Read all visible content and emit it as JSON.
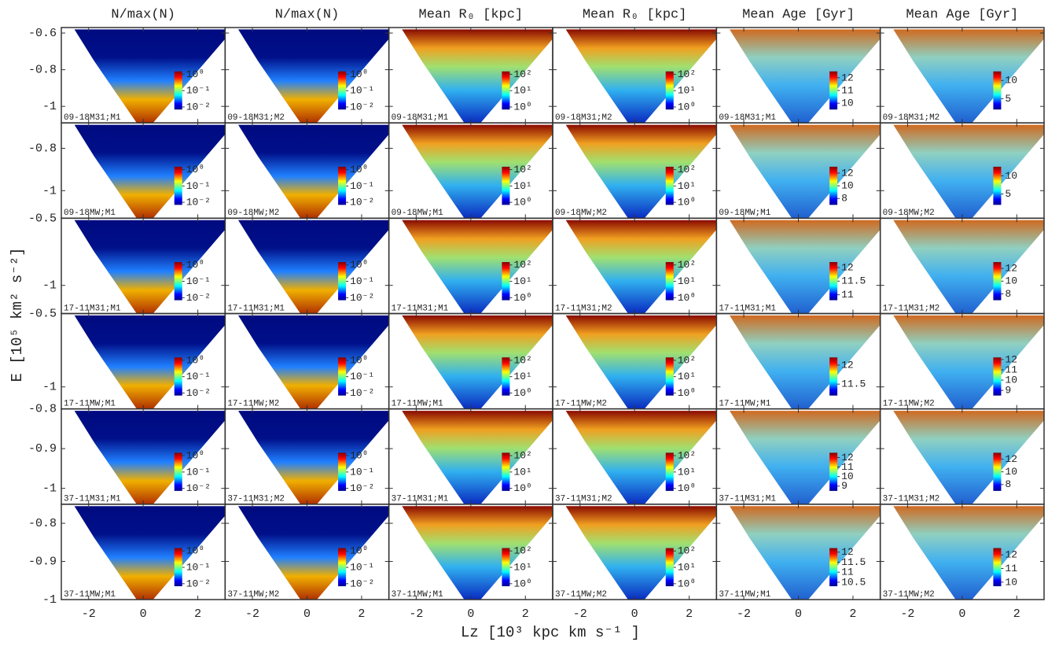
{
  "x_label": "Lz [10³ kpc km s⁻¹ ]",
  "y_label": "E [10⁵ km² s⁻²]",
  "chart_data": [
    {
      "type": "heatmap",
      "title": "N/max(N)",
      "label": "09-18M31;M1",
      "xlim": [
        -3,
        3
      ],
      "xticks": [
        -2,
        0,
        2
      ],
      "ylim": [
        -1.09,
        -0.57
      ],
      "yticks": [
        -1,
        -0.8,
        -0.6
      ],
      "clim": [
        0.007,
        1.5
      ],
      "clog": true,
      "cticks": [
        {
          "value": 1,
          "label": "10⁰"
        },
        {
          "value": 0.1,
          "label": "10⁻¹"
        },
        {
          "value": 0.01,
          "label": "10⁻²"
        }
      ]
    },
    {
      "type": "heatmap",
      "title": "N/max(N)",
      "label": "09-18M31;M2",
      "xlim": [
        -3,
        3
      ],
      "xticks": [
        -2,
        0,
        2
      ],
      "ylim": [
        -1.09,
        -0.57
      ],
      "yticks": [
        -1,
        -0.8,
        -0.6
      ],
      "clim": [
        0.007,
        1.5
      ],
      "clog": true,
      "cticks": [
        {
          "value": 1,
          "label": "10⁰"
        },
        {
          "value": 0.1,
          "label": "10⁻¹"
        },
        {
          "value": 0.01,
          "label": "10⁻²"
        }
      ]
    },
    {
      "type": "heatmap",
      "title": "Mean R₀ [kpc]",
      "label": "09-18M31;M1",
      "xlim": [
        -3,
        3
      ],
      "xticks": [
        -2,
        0,
        2
      ],
      "ylim": [
        -1.09,
        -0.57
      ],
      "yticks": [
        -1,
        -0.8,
        -0.6
      ],
      "clim": [
        0.7,
        150
      ],
      "clog": true,
      "cticks": [
        {
          "value": 100,
          "label": "10²"
        },
        {
          "value": 10,
          "label": "10¹"
        },
        {
          "value": 1,
          "label": "10⁰"
        }
      ]
    },
    {
      "type": "heatmap",
      "title": "Mean R₀ [kpc]",
      "label": "09-18M31;M2",
      "xlim": [
        -3,
        3
      ],
      "xticks": [
        -2,
        0,
        2
      ],
      "ylim": [
        -1.09,
        -0.57
      ],
      "yticks": [
        -1,
        -0.8,
        -0.6
      ],
      "clim": [
        0.7,
        150
      ],
      "clog": true,
      "cticks": [
        {
          "value": 100,
          "label": "10²"
        },
        {
          "value": 10,
          "label": "10¹"
        },
        {
          "value": 1,
          "label": "10⁰"
        }
      ]
    },
    {
      "type": "heatmap",
      "title": "Mean Age [Gyr]",
      "label": "09-18M31;M1",
      "xlim": [
        -3,
        3
      ],
      "xticks": [
        -2,
        0,
        2
      ],
      "ylim": [
        -1.09,
        -0.57
      ],
      "yticks": [
        -1,
        -0.8,
        -0.6
      ],
      "clim": [
        9.5,
        12.5
      ],
      "clog": false,
      "cticks": [
        12,
        11,
        10
      ]
    },
    {
      "type": "heatmap",
      "title": "Mean Age [Gyr]",
      "label": "09-18M31;M2",
      "xlim": [
        -3,
        3
      ],
      "xticks": [
        -2,
        0,
        2
      ],
      "ylim": [
        -1.09,
        -0.57
      ],
      "yticks": [
        -1,
        -0.8,
        -0.6
      ],
      "clim": [
        2,
        12.5
      ],
      "clog": false,
      "cticks": [
        10,
        5
      ]
    },
    {
      "type": "heatmap",
      "label": "09-18MW;M1",
      "xlim": [
        -3,
        3
      ],
      "xticks": [
        -2,
        0,
        2
      ],
      "ylim": [
        -1.13,
        -0.68
      ],
      "yticks": [
        -1,
        -0.8
      ],
      "clim": [
        0.007,
        1.5
      ],
      "clog": true,
      "cticks": [
        {
          "value": 1,
          "label": "10⁰"
        },
        {
          "value": 0.1,
          "label": "10⁻¹"
        },
        {
          "value": 0.01,
          "label": "10⁻²"
        }
      ]
    },
    {
      "type": "heatmap",
      "label": "09-18MW;M2",
      "xlim": [
        -3,
        3
      ],
      "xticks": [
        -2,
        0,
        2
      ],
      "ylim": [
        -1.13,
        -0.68
      ],
      "yticks": [
        -1,
        -0.8
      ],
      "clim": [
        0.007,
        1.5
      ],
      "clog": true,
      "cticks": [
        {
          "value": 1,
          "label": "10⁰"
        },
        {
          "value": 0.1,
          "label": "10⁻¹"
        },
        {
          "value": 0.01,
          "label": "10⁻²"
        }
      ]
    },
    {
      "type": "heatmap",
      "label": "09-18MW;M1",
      "xlim": [
        -3,
        3
      ],
      "xticks": [
        -2,
        0,
        2
      ],
      "ylim": [
        -1.13,
        -0.68
      ],
      "yticks": [
        -1,
        -0.8
      ],
      "clim": [
        0.7,
        150
      ],
      "clog": true,
      "cticks": [
        {
          "value": 100,
          "label": "10²"
        },
        {
          "value": 10,
          "label": "10¹"
        },
        {
          "value": 1,
          "label": "10⁰"
        }
      ]
    },
    {
      "type": "heatmap",
      "label": "09-18MW;M2",
      "xlim": [
        -3,
        3
      ],
      "xticks": [
        -2,
        0,
        2
      ],
      "ylim": [
        -1.13,
        -0.68
      ],
      "yticks": [
        -1,
        -0.8
      ],
      "clim": [
        0.7,
        150
      ],
      "clog": true,
      "cticks": [
        {
          "value": 100,
          "label": "10²"
        },
        {
          "value": 10,
          "label": "10¹"
        },
        {
          "value": 1,
          "label": "10⁰"
        }
      ]
    },
    {
      "type": "heatmap",
      "label": "09-18MW;M1",
      "xlim": [
        -3,
        3
      ],
      "xticks": [
        -2,
        0,
        2
      ],
      "ylim": [
        -1.13,
        -0.68
      ],
      "yticks": [
        -1,
        -0.8
      ],
      "clim": [
        7,
        13
      ],
      "clog": false,
      "cticks": [
        12,
        10,
        8
      ]
    },
    {
      "type": "heatmap",
      "label": "09-18MW;M2",
      "xlim": [
        -3,
        3
      ],
      "xticks": [
        -2,
        0,
        2
      ],
      "ylim": [
        -1.13,
        -0.68
      ],
      "yticks": [
        -1,
        -0.8
      ],
      "clim": [
        2,
        12.5
      ],
      "clog": false,
      "cticks": [
        10,
        5
      ]
    },
    {
      "type": "heatmap",
      "label": "17-11M31;M1",
      "xlim": [
        -3,
        3
      ],
      "xticks": [
        -2,
        0,
        2
      ],
      "ylim": [
        -1.21,
        -0.5
      ],
      "yticks": [
        -1,
        -0.5
      ],
      "clim": [
        0.007,
        1.5
      ],
      "clog": true,
      "cticks": [
        {
          "value": 1,
          "label": "10⁰"
        },
        {
          "value": 0.1,
          "label": "10⁻¹"
        },
        {
          "value": 0.01,
          "label": "10⁻²"
        }
      ]
    },
    {
      "type": "heatmap",
      "label": "17-11M31;M1",
      "xlim": [
        -3,
        3
      ],
      "xticks": [
        -2,
        0,
        2
      ],
      "ylim": [
        -1.21,
        -0.5
      ],
      "yticks": [
        -1,
        -0.5
      ],
      "clim": [
        0.007,
        1.5
      ],
      "clog": true,
      "cticks": [
        {
          "value": 1,
          "label": "10⁰"
        },
        {
          "value": 0.1,
          "label": "10⁻¹"
        },
        {
          "value": 0.01,
          "label": "10⁻²"
        }
      ]
    },
    {
      "type": "heatmap",
      "label": "17-11M31;M1",
      "xlim": [
        -3,
        3
      ],
      "xticks": [
        -2,
        0,
        2
      ],
      "ylim": [
        -1.21,
        -0.5
      ],
      "yticks": [
        -1,
        -0.5
      ],
      "clim": [
        0.7,
        150
      ],
      "clog": true,
      "cticks": [
        {
          "value": 100,
          "label": "10²"
        },
        {
          "value": 10,
          "label": "10¹"
        },
        {
          "value": 1,
          "label": "10⁰"
        }
      ]
    },
    {
      "type": "heatmap",
      "label": "17-11M31;M2",
      "xlim": [
        -3,
        3
      ],
      "xticks": [
        -2,
        0,
        2
      ],
      "ylim": [
        -1.21,
        -0.5
      ],
      "yticks": [
        -1,
        -0.5
      ],
      "clim": [
        0.7,
        150
      ],
      "clog": true,
      "cticks": [
        {
          "value": 100,
          "label": "10²"
        },
        {
          "value": 10,
          "label": "10¹"
        },
        {
          "value": 1,
          "label": "10⁰"
        }
      ]
    },
    {
      "type": "heatmap",
      "label": "17-11M31;M1",
      "xlim": [
        -3,
        3
      ],
      "xticks": [
        -2,
        0,
        2
      ],
      "ylim": [
        -1.21,
        -0.5
      ],
      "yticks": [
        -1,
        -0.5
      ],
      "clim": [
        10.8,
        12.2
      ],
      "clog": false,
      "cticks": [
        12,
        11.5,
        11
      ]
    },
    {
      "type": "heatmap",
      "label": "17-11M31;M2",
      "xlim": [
        -3,
        3
      ],
      "xticks": [
        -2,
        0,
        2
      ],
      "ylim": [
        -1.21,
        -0.5
      ],
      "yticks": [
        -1,
        -0.5
      ],
      "clim": [
        7,
        13
      ],
      "clog": false,
      "cticks": [
        12,
        10,
        8
      ]
    },
    {
      "type": "heatmap",
      "label": "17-11MW;M1",
      "xlim": [
        -3,
        3
      ],
      "xticks": [
        -2,
        0,
        2
      ],
      "ylim": [
        -1.15,
        -0.5
      ],
      "yticks": [
        -1,
        -0.5
      ],
      "clim": [
        0.007,
        1.5
      ],
      "clog": true,
      "cticks": [
        {
          "value": 1,
          "label": "10⁰"
        },
        {
          "value": 0.1,
          "label": "10⁻¹"
        },
        {
          "value": 0.01,
          "label": "10⁻²"
        }
      ]
    },
    {
      "type": "heatmap",
      "label": "17-11MW;M2",
      "xlim": [
        -3,
        3
      ],
      "xticks": [
        -2,
        0,
        2
      ],
      "ylim": [
        -1.15,
        -0.5
      ],
      "yticks": [
        -1,
        -0.5
      ],
      "clim": [
        0.007,
        1.5
      ],
      "clog": true,
      "cticks": [
        {
          "value": 1,
          "label": "10⁰"
        },
        {
          "value": 0.1,
          "label": "10⁻¹"
        },
        {
          "value": 0.01,
          "label": "10⁻²"
        }
      ]
    },
    {
      "type": "heatmap",
      "label": "17-11MW;M1",
      "xlim": [
        -3,
        3
      ],
      "xticks": [
        -2,
        0,
        2
      ],
      "ylim": [
        -1.15,
        -0.5
      ],
      "yticks": [
        -1,
        -0.5
      ],
      "clim": [
        0.7,
        150
      ],
      "clog": true,
      "cticks": [
        {
          "value": 100,
          "label": "10²"
        },
        {
          "value": 10,
          "label": "10¹"
        },
        {
          "value": 1,
          "label": "10⁰"
        }
      ]
    },
    {
      "type": "heatmap",
      "label": "17-11MW;M2",
      "xlim": [
        -3,
        3
      ],
      "xticks": [
        -2,
        0,
        2
      ],
      "ylim": [
        -1.15,
        -0.5
      ],
      "yticks": [
        -1,
        -0.5
      ],
      "clim": [
        0.7,
        150
      ],
      "clog": true,
      "cticks": [
        {
          "value": 100,
          "label": "10²"
        },
        {
          "value": 10,
          "label": "10¹"
        },
        {
          "value": 1,
          "label": "10⁰"
        }
      ]
    },
    {
      "type": "heatmap",
      "label": "17-11MW;M1",
      "xlim": [
        -3,
        3
      ],
      "xticks": [
        -2,
        0,
        2
      ],
      "ylim": [
        -1.15,
        -0.5
      ],
      "yticks": [
        -1,
        -0.5
      ],
      "clim": [
        11.2,
        12.2
      ],
      "clog": false,
      "cticks": [
        12,
        11.5
      ]
    },
    {
      "type": "heatmap",
      "label": "17-11MW;M2",
      "xlim": [
        -3,
        3
      ],
      "xticks": [
        -2,
        0,
        2
      ],
      "ylim": [
        -1.15,
        -0.5
      ],
      "yticks": [
        -1,
        -0.5
      ],
      "clim": [
        8.5,
        12.2
      ],
      "clog": false,
      "cticks": [
        12,
        11,
        10,
        9
      ]
    },
    {
      "type": "heatmap",
      "label": "37-11M31;M1",
      "xlim": [
        -3,
        3
      ],
      "xticks": [
        -2,
        0,
        2
      ],
      "ylim": [
        -1.04,
        -0.8
      ],
      "yticks": [
        -1,
        -0.9,
        -0.8
      ],
      "clim": [
        0.007,
        1.5
      ],
      "clog": true,
      "cticks": [
        {
          "value": 1,
          "label": "10⁰"
        },
        {
          "value": 0.1,
          "label": "10⁻¹"
        },
        {
          "value": 0.01,
          "label": "10⁻²"
        }
      ]
    },
    {
      "type": "heatmap",
      "label": "37-11M31;M2",
      "xlim": [
        -3,
        3
      ],
      "xticks": [
        -2,
        0,
        2
      ],
      "ylim": [
        -1.04,
        -0.8
      ],
      "yticks": [
        -1,
        -0.9,
        -0.8
      ],
      "clim": [
        0.007,
        1.5
      ],
      "clog": true,
      "cticks": [
        {
          "value": 1,
          "label": "10⁰"
        },
        {
          "value": 0.1,
          "label": "10⁻¹"
        },
        {
          "value": 0.01,
          "label": "10⁻²"
        }
      ]
    },
    {
      "type": "heatmap",
      "label": "37-11M31;M1",
      "xlim": [
        -3,
        3
      ],
      "xticks": [
        -2,
        0,
        2
      ],
      "ylim": [
        -1.04,
        -0.8
      ],
      "yticks": [
        -1,
        -0.9,
        -0.8
      ],
      "clim": [
        0.7,
        150
      ],
      "clog": true,
      "cticks": [
        {
          "value": 100,
          "label": "10²"
        },
        {
          "value": 10,
          "label": "10¹"
        },
        {
          "value": 1,
          "label": "10⁰"
        }
      ]
    },
    {
      "type": "heatmap",
      "label": "37-11M31;M2",
      "xlim": [
        -3,
        3
      ],
      "xticks": [
        -2,
        0,
        2
      ],
      "ylim": [
        -1.04,
        -0.8
      ],
      "yticks": [
        -1,
        -0.9,
        -0.8
      ],
      "clim": [
        0.7,
        150
      ],
      "clog": true,
      "cticks": [
        {
          "value": 100,
          "label": "10²"
        },
        {
          "value": 10,
          "label": "10¹"
        },
        {
          "value": 1,
          "label": "10⁰"
        }
      ]
    },
    {
      "type": "heatmap",
      "label": "37-11M31;M1",
      "xlim": [
        -3,
        3
      ],
      "xticks": [
        -2,
        0,
        2
      ],
      "ylim": [
        -1.04,
        -0.8
      ],
      "yticks": [
        -1,
        -0.9,
        -0.8
      ],
      "clim": [
        8.5,
        12.5
      ],
      "clog": false,
      "cticks": [
        12,
        11,
        10,
        9
      ]
    },
    {
      "type": "heatmap",
      "label": "37-11M31;M2",
      "xlim": [
        -3,
        3
      ],
      "xticks": [
        -2,
        0,
        2
      ],
      "ylim": [
        -1.04,
        -0.8
      ],
      "yticks": [
        -1,
        -0.9,
        -0.8
      ],
      "clim": [
        7,
        13
      ],
      "clog": false,
      "cticks": [
        12,
        10,
        8
      ]
    },
    {
      "type": "heatmap",
      "label": "37-11MW;M1",
      "xlim": [
        -3,
        3
      ],
      "xticks": [
        -2,
        0,
        2
      ],
      "ylim": [
        -1,
        -0.75
      ],
      "yticks": [
        -1,
        -0.9,
        -0.8
      ],
      "clim": [
        0.007,
        1.5
      ],
      "clog": true,
      "cticks": [
        {
          "value": 1,
          "label": "10⁰"
        },
        {
          "value": 0.1,
          "label": "10⁻¹"
        },
        {
          "value": 0.01,
          "label": "10⁻²"
        }
      ]
    },
    {
      "type": "heatmap",
      "label": "37-11MW;M2",
      "xlim": [
        -3,
        3
      ],
      "xticks": [
        -2,
        0,
        2
      ],
      "ylim": [
        -1,
        -0.75
      ],
      "yticks": [
        -1,
        -0.9,
        -0.8
      ],
      "clim": [
        0.007,
        1.5
      ],
      "clog": true,
      "cticks": [
        {
          "value": 1,
          "label": "10⁰"
        },
        {
          "value": 0.1,
          "label": "10⁻¹"
        },
        {
          "value": 0.01,
          "label": "10⁻²"
        }
      ]
    },
    {
      "type": "heatmap",
      "label": "37-11MW;M1",
      "xlim": [
        -3,
        3
      ],
      "xticks": [
        -2,
        0,
        2
      ],
      "ylim": [
        -1,
        -0.75
      ],
      "yticks": [
        -1,
        -0.9,
        -0.8
      ],
      "clim": [
        0.7,
        150
      ],
      "clog": true,
      "cticks": [
        {
          "value": 100,
          "label": "10²"
        },
        {
          "value": 10,
          "label": "10¹"
        },
        {
          "value": 1,
          "label": "10⁰"
        }
      ]
    },
    {
      "type": "heatmap",
      "label": "37-11MW;M2",
      "xlim": [
        -3,
        3
      ],
      "xticks": [
        -2,
        0,
        2
      ],
      "ylim": [
        -1,
        -0.75
      ],
      "yticks": [
        -1,
        -0.9,
        -0.8
      ],
      "clim": [
        0.7,
        150
      ],
      "clog": true,
      "cticks": [
        {
          "value": 100,
          "label": "10²"
        },
        {
          "value": 10,
          "label": "10¹"
        },
        {
          "value": 1,
          "label": "10⁰"
        }
      ]
    },
    {
      "type": "heatmap",
      "label": "37-11MW;M1",
      "xlim": [
        -3,
        3
      ],
      "xticks": [
        -2,
        0,
        2
      ],
      "ylim": [
        -1,
        -0.75
      ],
      "yticks": [
        -1,
        -0.9,
        -0.8
      ],
      "clim": [
        10.3,
        12.2
      ],
      "clog": false,
      "cticks": [
        12,
        11.5,
        11,
        10.5
      ]
    },
    {
      "type": "heatmap",
      "label": "37-11MW;M2",
      "xlim": [
        -3,
        3
      ],
      "xticks": [
        -2,
        0,
        2
      ],
      "ylim": [
        -1,
        -0.75
      ],
      "yticks": [
        -1,
        -0.9,
        -0.8
      ],
      "clim": [
        9.7,
        12.5
      ],
      "clog": false,
      "cticks": [
        12,
        11,
        10
      ]
    }
  ]
}
